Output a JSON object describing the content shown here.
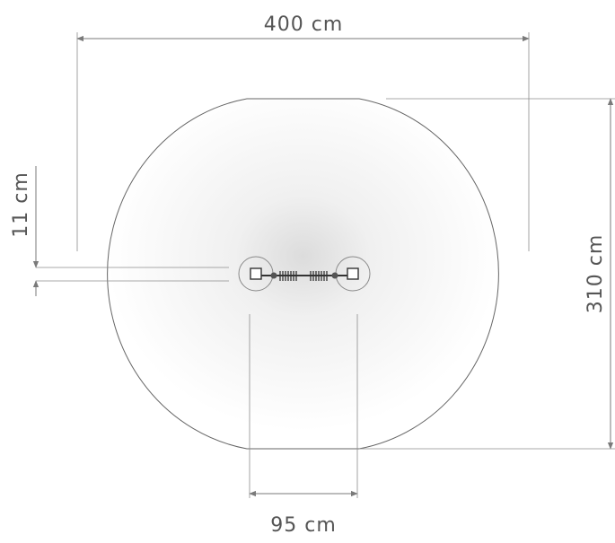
{
  "dimensions": {
    "overall_width": "400 cm",
    "overall_depth": "310 cm",
    "base_offset": "11 cm",
    "footprint_width": "95 cm"
  },
  "colors": {
    "line": "#7a7a7a",
    "text": "#555555",
    "outline": "#666666",
    "equipment": "#444444"
  }
}
